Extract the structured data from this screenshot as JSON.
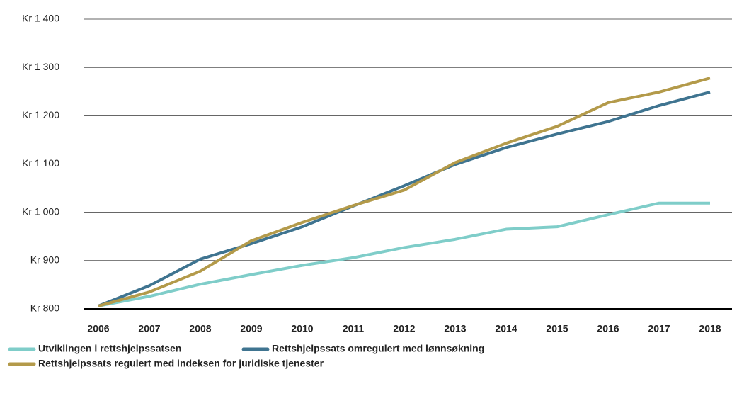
{
  "chart_data": {
    "type": "line",
    "categories": [
      "2006",
      "2007",
      "2008",
      "2009",
      "2010",
      "2011",
      "2012",
      "2013",
      "2014",
      "2015",
      "2016",
      "2017",
      "2018"
    ],
    "series": [
      {
        "name": "Utviklingen i rettshjelpssatsen",
        "color": "#7fcdc9",
        "values": [
          806,
          826,
          851,
          871,
          890,
          906,
          927,
          944,
          965,
          970,
          995,
          1019,
          1019
        ]
      },
      {
        "name": "Rettshjelpssats omregulert med lønnsøkning",
        "color": "#3f7490",
        "values": [
          806,
          848,
          903,
          935,
          970,
          1013,
          1055,
          1099,
          1134,
          1162,
          1188,
          1221,
          1249
        ]
      },
      {
        "name": "Rettshjelpssats regulert med indeksen for juridiske tjenester",
        "color": "#b39a4a",
        "values": [
          806,
          835,
          878,
          941,
          979,
          1014,
          1046,
          1103,
          1143,
          1178,
          1227,
          1249,
          1278
        ]
      }
    ],
    "ylim": [
      800,
      1400
    ],
    "yticks": [
      {
        "value": 800,
        "label": "Kr 800"
      },
      {
        "value": 900,
        "label": "Kr 900"
      },
      {
        "value": 1000,
        "label": "Kr 1 000"
      },
      {
        "value": 1100,
        "label": "Kr 1 100"
      },
      {
        "value": 1200,
        "label": "Kr 1 200"
      },
      {
        "value": 1300,
        "label": "Kr 1 300"
      },
      {
        "value": 1400,
        "label": "Kr 1 400"
      }
    ],
    "grid": true
  }
}
